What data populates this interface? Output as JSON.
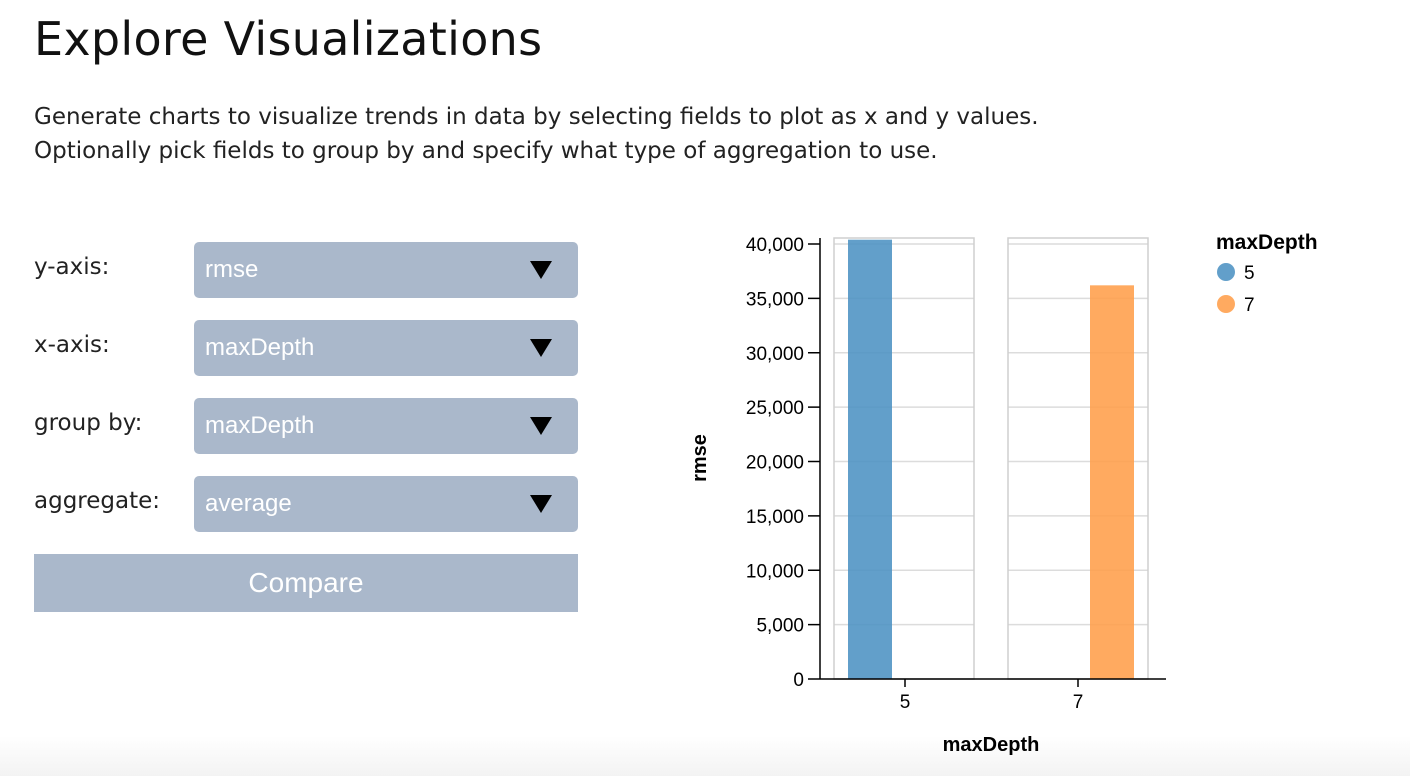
{
  "header": {
    "title": "Explore Visualizations",
    "description_line1": "Generate charts to visualize trends in data by selecting fields to plot as x and y values.",
    "description_line2": "Optionally pick fields to group by and specify what type of aggregation to use."
  },
  "controls": {
    "y_axis": {
      "label": "y-axis:",
      "value": "rmse"
    },
    "x_axis": {
      "label": "x-axis:",
      "value": "maxDepth"
    },
    "group_by": {
      "label": "group by:",
      "value": "maxDepth"
    },
    "aggregate": {
      "label": "aggregate:",
      "value": "average"
    },
    "compare_label": "Compare",
    "arrow_icon": "triangle-down-icon"
  },
  "colors": {
    "select_bg": "#aab8cb",
    "series_5": "#4c92c3",
    "series_7": "#ff9e4a"
  },
  "chart_data": {
    "type": "bar",
    "title": "",
    "xlabel": "maxDepth",
    "ylabel": "rmse",
    "categories": [
      "5",
      "7"
    ],
    "series": [
      {
        "name": "5",
        "color": "#4c92c3",
        "values": [
          40400,
          0
        ]
      },
      {
        "name": "7",
        "color": "#ff9e4a",
        "values": [
          0,
          36200
        ]
      }
    ],
    "ylim": [
      0,
      40000
    ],
    "yticks": [
      0,
      5000,
      10000,
      15000,
      20000,
      25000,
      30000,
      35000,
      40000
    ],
    "ytick_labels": [
      "0",
      "5,000",
      "10,000",
      "15,000",
      "20,000",
      "25,000",
      "30,000",
      "35,000",
      "40,000"
    ],
    "grid": true,
    "legend": {
      "title": "maxDepth",
      "position": "top-right",
      "entries": [
        "5",
        "7"
      ]
    }
  }
}
